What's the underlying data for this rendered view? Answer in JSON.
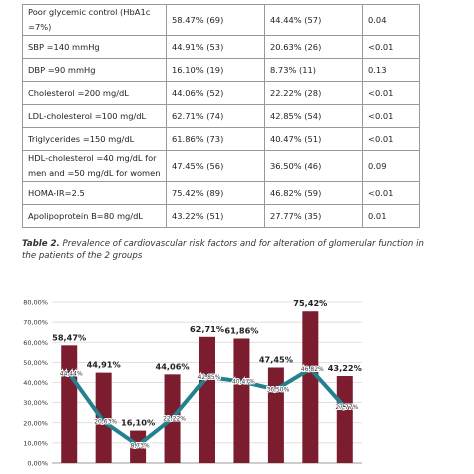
{
  "table": {
    "rows": [
      [
        "Poor glycemic control (HbA1c =7%)",
        "58.47% (69)",
        "44.44% (57)",
        "0.04"
      ],
      [
        "SBP =140 mmHg",
        "44.91% (53)",
        "20.63% (26)",
        "<0.01"
      ],
      [
        "DBP =90 mmHg",
        "16.10% (19)",
        "8.73% (11)",
        "0.13"
      ],
      [
        "Cholesterol =200 mg/dL",
        "44.06% (52)",
        "22.22% (28)",
        "<0.01"
      ],
      [
        "LDL-cholesterol =100 mg/dL",
        "62.71% (74)",
        "42.85% (54)",
        "<0.01"
      ],
      [
        "Triglycerides =150 mg/dL",
        "61.86% (73)",
        "40.47% (51)",
        "<0.01"
      ],
      [
        "HDL-cholesterol =40 mg/dL for men and =50 mg/dL for women",
        "47.45% (56)",
        "36.50% (46)",
        "0.09"
      ],
      [
        "HOMA-IR=2.5",
        "75.42% (89)",
        "46.82% (59)",
        "<0.01"
      ],
      [
        "Apolipoprotein B=80 mg/dL",
        "43.22% (51)",
        "27.77% (35)",
        "0.01"
      ]
    ]
  },
  "caption": {
    "label": "Table 2.",
    "text": "Prevalence of cardiovascular risk factors and for alteration of glomerular function in the patients of the 2 groups"
  },
  "chart_data": {
    "type": "bar-line",
    "categories": [
      null,
      null,
      null,
      null,
      null,
      null,
      null,
      null,
      null
    ],
    "series": [
      {
        "type": "bar",
        "color": "#7b1c2f",
        "values": [
          58.47,
          44.91,
          16.1,
          44.06,
          62.71,
          61.86,
          47.45,
          75.42,
          43.22
        ],
        "value_labels": [
          "58,47%",
          "44,91%",
          "16,10%",
          "44,06%",
          "62,71%",
          "61,86%",
          "47,45%",
          "75,42%",
          "43,22%"
        ]
      },
      {
        "type": "line",
        "color": "#24808d",
        "values": [
          44.44,
          20.63,
          8.73,
          22.22,
          42.85,
          40.47,
          36.5,
          46.82,
          27.77
        ],
        "value_labels": [
          "44,44%",
          "20,63%",
          "8,73%",
          "22,22%",
          "42,85%",
          "40,47%",
          "36,50%",
          "46,82%",
          "27,77%"
        ]
      }
    ],
    "ylim": [
      0,
      80
    ],
    "yticks": [
      {
        "value": 0,
        "label": "0,00%"
      },
      {
        "value": 10,
        "label": "10,00%"
      },
      {
        "value": 20,
        "label": "20,00%"
      },
      {
        "value": 30,
        "label": "30,00%"
      },
      {
        "value": 40,
        "label": "40,00%"
      },
      {
        "value": 50,
        "label": "50,00%"
      },
      {
        "value": 60,
        "label": "60,00%"
      },
      {
        "value": 70,
        "label": "70,00%"
      },
      {
        "value": 80,
        "label": "80,00%"
      }
    ],
    "grid": true
  }
}
